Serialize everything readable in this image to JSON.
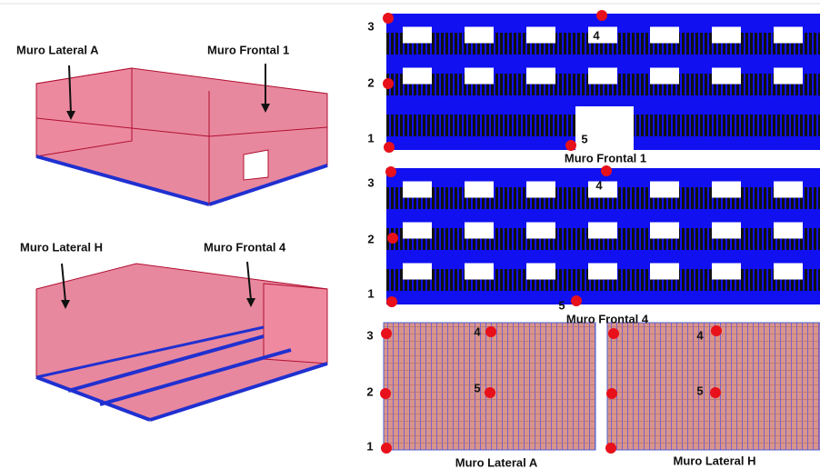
{
  "models": [
    {
      "labels": [
        "Muro Lateral A",
        "Muro Frontal 1"
      ]
    },
    {
      "labels": [
        "Muro Lateral H",
        "Muro Frontal 4"
      ]
    }
  ],
  "panels": [
    {
      "caption": "Muro Frontal 1",
      "points": [
        "1",
        "2",
        "3",
        "4",
        "5"
      ]
    },
    {
      "caption": "Muro Frontal 4",
      "points": [
        "1",
        "2",
        "3",
        "4",
        "5"
      ]
    },
    {
      "caption": "Muro Lateral A",
      "points": [
        "1",
        "2",
        "3",
        "4",
        "5"
      ]
    },
    {
      "caption": "Muro Lateral H",
      "points": [
        "4",
        "5"
      ]
    }
  ]
}
